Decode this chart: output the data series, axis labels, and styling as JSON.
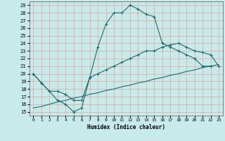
{
  "xlabel": "Humidex (Indice chaleur)",
  "xlim": [
    -0.5,
    23.5
  ],
  "ylim": [
    14.5,
    29.5
  ],
  "xticks": [
    0,
    1,
    2,
    3,
    4,
    5,
    6,
    7,
    8,
    9,
    10,
    11,
    12,
    13,
    14,
    15,
    16,
    17,
    18,
    19,
    20,
    21,
    22,
    23
  ],
  "yticks": [
    15,
    16,
    17,
    18,
    19,
    20,
    21,
    22,
    23,
    24,
    25,
    26,
    27,
    28,
    29
  ],
  "bg_color": "#c8eaea",
  "grid_color": "#b0d8d8",
  "line_color": "#1a6b6b",
  "line1_x": [
    0,
    1,
    2,
    3,
    4,
    5,
    6,
    7,
    8,
    9,
    10,
    11,
    12,
    13,
    14,
    15,
    16,
    17,
    18,
    19,
    20,
    21,
    22
  ],
  "line1_y": [
    20.0,
    18.8,
    17.7,
    16.5,
    16.0,
    15.0,
    15.5,
    19.5,
    23.5,
    26.5,
    28.0,
    28.0,
    29.0,
    28.5,
    27.8,
    27.5,
    24.0,
    23.5,
    23.0,
    22.5,
    22.0,
    21.0,
    21.0
  ],
  "line2_x": [
    0,
    1,
    2,
    3,
    4,
    5,
    6,
    7,
    8,
    9,
    10,
    11,
    12,
    13,
    14,
    15,
    16,
    17,
    18,
    19,
    20,
    21,
    22,
    23
  ],
  "line2_y": [
    20.0,
    18.8,
    17.7,
    17.7,
    17.3,
    16.5,
    16.5,
    19.5,
    20.0,
    20.5,
    21.0,
    21.5,
    22.0,
    22.5,
    23.0,
    23.0,
    23.5,
    23.8,
    24.0,
    23.5,
    23.0,
    22.8,
    22.5,
    21.0
  ],
  "line3_x": [
    0,
    1,
    2,
    3,
    4,
    5,
    6,
    7,
    8,
    9,
    10,
    11,
    12,
    13,
    14,
    15,
    16,
    17,
    18,
    19,
    20,
    21,
    22,
    23
  ],
  "line3_y": [
    15.5,
    15.7,
    16.0,
    16.3,
    16.5,
    16.8,
    17.0,
    17.3,
    17.5,
    17.8,
    18.0,
    18.3,
    18.5,
    18.8,
    19.0,
    19.3,
    19.5,
    19.8,
    20.0,
    20.3,
    20.5,
    20.8,
    21.0,
    21.2
  ]
}
